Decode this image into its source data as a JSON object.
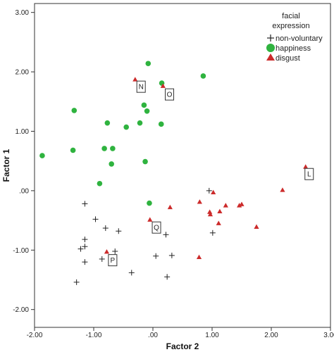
{
  "chart_data": {
    "type": "scatter",
    "xlabel": "Factor 2",
    "ylabel": "Factor 1",
    "xlim": [
      -2.0,
      3.0
    ],
    "ylim": [
      -2.3,
      3.15
    ],
    "x_ticks": [
      -2,
      -1,
      0,
      1,
      2,
      3
    ],
    "y_ticks": [
      -2,
      -1,
      0,
      1,
      2,
      3
    ],
    "x_tick_labels": [
      "-2.00",
      "-1.00",
      ".00",
      "1.00",
      "2.00",
      "3.00"
    ],
    "y_tick_labels": [
      "-2.00",
      "-1.00",
      ".00",
      "1.00",
      "2.00",
      "3.00"
    ],
    "grid": false,
    "legend": {
      "title_lines": [
        "facial",
        "expression"
      ],
      "position": "top-right"
    },
    "series": [
      {
        "name": "non-voluntary",
        "marker": "plus",
        "color": "#222222",
        "points": [
          [
            -1.15,
            -0.22
          ],
          [
            -0.97,
            -0.48
          ],
          [
            -0.8,
            -0.63
          ],
          [
            -0.58,
            -0.68
          ],
          [
            -1.15,
            -0.82
          ],
          [
            -1.15,
            -0.94
          ],
          [
            -1.22,
            -0.98
          ],
          [
            -1.15,
            -1.2
          ],
          [
            -0.86,
            -1.15
          ],
          [
            -0.64,
            -1.02
          ],
          [
            -1.29,
            -1.54
          ],
          [
            -0.36,
            -1.38
          ],
          [
            0.22,
            -0.74
          ],
          [
            0.05,
            -1.1
          ],
          [
            0.24,
            -1.45
          ],
          [
            0.32,
            -1.09
          ],
          [
            0.95,
            0.0
          ],
          [
            1.01,
            -0.71
          ]
        ]
      },
      {
        "name": "happiness",
        "marker": "circle",
        "color": "#2fb33f",
        "points": [
          [
            -0.08,
            2.14
          ],
          [
            0.85,
            1.93
          ],
          [
            0.15,
            1.81
          ],
          [
            -0.15,
            1.44
          ],
          [
            -1.33,
            1.35
          ],
          [
            -0.1,
            1.34
          ],
          [
            -0.77,
            1.14
          ],
          [
            -0.22,
            1.14
          ],
          [
            0.14,
            1.12
          ],
          [
            -0.45,
            1.07
          ],
          [
            -1.87,
            0.59
          ],
          [
            -1.35,
            0.68
          ],
          [
            -0.82,
            0.71
          ],
          [
            -0.68,
            0.71
          ],
          [
            -0.7,
            0.45
          ],
          [
            -0.13,
            0.49
          ],
          [
            -0.9,
            0.12
          ],
          [
            -0.06,
            -0.21
          ]
        ]
      },
      {
        "name": "disgust",
        "marker": "triangle",
        "color": "#cc2b2b",
        "points": [
          [
            -0.3,
            1.87
          ],
          [
            0.17,
            1.76
          ],
          [
            2.58,
            0.4
          ],
          [
            2.19,
            0.01
          ],
          [
            1.02,
            -0.03
          ],
          [
            0.79,
            -0.19
          ],
          [
            1.23,
            -0.25
          ],
          [
            1.46,
            -0.25
          ],
          [
            1.5,
            -0.23
          ],
          [
            0.29,
            -0.28
          ],
          [
            0.96,
            -0.36
          ],
          [
            0.97,
            -0.4
          ],
          [
            1.13,
            -0.35
          ],
          [
            1.11,
            -0.55
          ],
          [
            1.75,
            -0.61
          ],
          [
            -0.05,
            -0.49
          ],
          [
            -0.78,
            -1.03
          ],
          [
            0.78,
            -1.12
          ]
        ]
      }
    ],
    "annotations": [
      {
        "label": "N",
        "x": -0.2,
        "y": 1.75
      },
      {
        "label": "O",
        "x": 0.28,
        "y": 1.62
      },
      {
        "label": "L",
        "x": 2.64,
        "y": 0.28
      },
      {
        "label": "Q",
        "x": 0.06,
        "y": -0.62
      },
      {
        "label": "P",
        "x": -0.68,
        "y": -1.17
      }
    ]
  }
}
